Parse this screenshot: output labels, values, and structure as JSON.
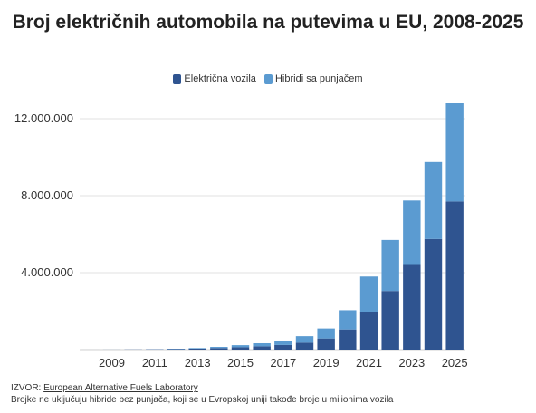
{
  "chart_data": {
    "type": "bar",
    "stacked": true,
    "title": "Broj električnih automobila na putevima u EU, 2008-2025",
    "categories": [
      "2008",
      "2009",
      "2010",
      "2011",
      "2012",
      "2013",
      "2014",
      "2015",
      "2016",
      "2017",
      "2018",
      "2019",
      "2020",
      "2021",
      "2022",
      "2023",
      "2024",
      "2025"
    ],
    "x_tick_labels": [
      "2009",
      "2011",
      "2013",
      "2015",
      "2017",
      "2019",
      "2021",
      "2023",
      "2025"
    ],
    "series": [
      {
        "name": "Električna vozila",
        "color": "#2f5490",
        "values": [
          1000,
          3000,
          8000,
          15000,
          30000,
          50000,
          80000,
          120000,
          170000,
          240000,
          360000,
          580000,
          1050000,
          1950000,
          3050000,
          4400000,
          5750000,
          7700000
        ]
      },
      {
        "name": "Hibridi sa punjačem",
        "color": "#5b9bd1",
        "values": [
          0,
          1000,
          2000,
          5000,
          15000,
          30000,
          60000,
          110000,
          160000,
          230000,
          340000,
          520000,
          1000000,
          1850000,
          2650000,
          3350000,
          4000000,
          5100000
        ]
      }
    ],
    "y_ticks": [
      4000000,
      8000000,
      12000000
    ],
    "y_tick_labels": [
      "4.000.000",
      "8.000.000",
      "12.000.000"
    ],
    "ylim": [
      0,
      12800000
    ],
    "grid": true,
    "legend_position": "top-center"
  },
  "footer": {
    "source_prefix": "IZVOR: ",
    "source_link": "European Alternative Fuels Laboratory",
    "note": "Brojke ne uključuju hibride bez punjača, koji se u Evropskoj uniji takođe broje u milionima vozila"
  }
}
